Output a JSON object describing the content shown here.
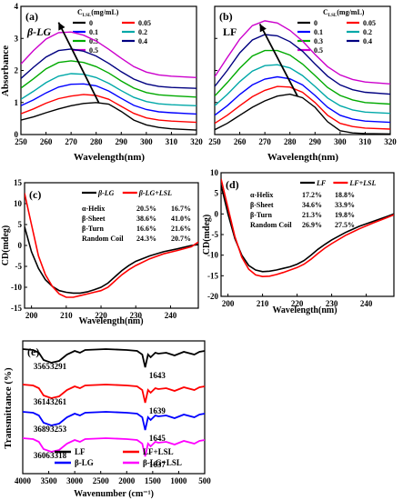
{
  "chart_data": [
    {
      "panel": "(a)",
      "type": "line",
      "tag": "β-LG",
      "xlabel": "Wavelength(nm)",
      "ylabel": "Absorbance",
      "xlim": [
        250,
        320
      ],
      "ylim": [
        0,
        4
      ],
      "xticks": [
        250,
        260,
        270,
        280,
        290,
        300,
        310,
        320
      ],
      "yticks": [
        0,
        1,
        2,
        3,
        4
      ],
      "legend_title": "C_LSL(mg/mL)",
      "legend": [
        {
          "name": "0",
          "color": "#000000"
        },
        {
          "name": "0.05",
          "color": "#ff0000"
        },
        {
          "name": "0.1",
          "color": "#0000ff"
        },
        {
          "name": "0.2",
          "color": "#00a8a8"
        },
        {
          "name": "0.3",
          "color": "#00aa00"
        },
        {
          "name": "0.4",
          "color": "#000080"
        },
        {
          "name": "0.5",
          "color": "#cc00cc"
        }
      ],
      "x": [
        250,
        255,
        260,
        265,
        270,
        275,
        280,
        285,
        290,
        295,
        300,
        305,
        310,
        320
      ],
      "series": [
        {
          "name": "0",
          "color": "#000000",
          "values": [
            0.45,
            0.55,
            0.68,
            0.8,
            0.9,
            0.97,
            1.0,
            0.95,
            0.72,
            0.45,
            0.3,
            0.22,
            0.18,
            0.14
          ]
        },
        {
          "name": "0.05",
          "color": "#ff0000",
          "values": [
            0.65,
            0.8,
            0.98,
            1.12,
            1.2,
            1.25,
            1.22,
            1.1,
            0.88,
            0.66,
            0.52,
            0.45,
            0.42,
            0.38
          ]
        },
        {
          "name": "0.1",
          "color": "#0000ff",
          "values": [
            0.9,
            1.08,
            1.3,
            1.48,
            1.57,
            1.58,
            1.52,
            1.36,
            1.13,
            0.91,
            0.78,
            0.71,
            0.68,
            0.64
          ]
        },
        {
          "name": "0.2",
          "color": "#00a8a8",
          "values": [
            1.1,
            1.35,
            1.62,
            1.82,
            1.9,
            1.88,
            1.78,
            1.6,
            1.37,
            1.16,
            1.03,
            0.96,
            0.93,
            0.9
          ]
        },
        {
          "name": "0.3",
          "color": "#00aa00",
          "values": [
            1.45,
            1.74,
            2.05,
            2.25,
            2.3,
            2.25,
            2.12,
            1.92,
            1.67,
            1.45,
            1.31,
            1.24,
            1.21,
            1.17
          ]
        },
        {
          "name": "0.4",
          "color": "#000080",
          "values": [
            1.75,
            2.1,
            2.42,
            2.62,
            2.67,
            2.6,
            2.45,
            2.22,
            1.96,
            1.73,
            1.58,
            1.5,
            1.47,
            1.44
          ]
        },
        {
          "name": "0.5",
          "color": "#cc00cc",
          "values": [
            2.2,
            2.62,
            2.98,
            3.18,
            3.2,
            3.1,
            2.92,
            2.66,
            2.38,
            2.12,
            1.95,
            1.86,
            1.82,
            1.78
          ]
        }
      ],
      "arrow": {
        "from": [
          281,
          1.0
        ],
        "to": [
          265,
          3.5
        ]
      }
    },
    {
      "panel": "(b)",
      "type": "line",
      "tag": "LF",
      "xlabel": "Wavelength(nm)",
      "ylabel": "",
      "xlim": [
        250,
        320
      ],
      "ylim": [
        0,
        4
      ],
      "xticks": [
        250,
        260,
        270,
        280,
        290,
        300,
        310,
        320
      ],
      "yticks": [
        0,
        1,
        2,
        3,
        4
      ],
      "legend_title": "C_LSL(mg/mL)",
      "legend": [
        {
          "name": "0",
          "color": "#000000"
        },
        {
          "name": "0.05",
          "color": "#ff0000"
        },
        {
          "name": "0.1",
          "color": "#0000ff"
        },
        {
          "name": "0.2",
          "color": "#00a8a8"
        },
        {
          "name": "0.3",
          "color": "#00aa00"
        },
        {
          "name": "0.4",
          "color": "#000080"
        },
        {
          "name": "0.5",
          "color": "#cc00cc"
        }
      ],
      "x": [
        250,
        255,
        260,
        265,
        270,
        275,
        280,
        285,
        290,
        295,
        300,
        305,
        310,
        320
      ],
      "series": [
        {
          "name": "0",
          "color": "#000000",
          "values": [
            0.15,
            0.35,
            0.6,
            0.85,
            1.05,
            1.2,
            1.26,
            1.15,
            0.85,
            0.4,
            0.12,
            0.05,
            0.03,
            0.02
          ]
        },
        {
          "name": "0.05",
          "color": "#ff0000",
          "values": [
            0.35,
            0.6,
            0.9,
            1.18,
            1.38,
            1.5,
            1.48,
            1.32,
            1.0,
            0.6,
            0.35,
            0.25,
            0.2,
            0.17
          ]
        },
        {
          "name": "0.1",
          "color": "#0000ff",
          "values": [
            0.6,
            0.9,
            1.25,
            1.55,
            1.73,
            1.8,
            1.74,
            1.55,
            1.22,
            0.85,
            0.6,
            0.48,
            0.42,
            0.38
          ]
        },
        {
          "name": "0.2",
          "color": "#00a8a8",
          "values": [
            0.9,
            1.25,
            1.65,
            1.98,
            2.15,
            2.18,
            2.08,
            1.84,
            1.5,
            1.14,
            0.9,
            0.77,
            0.7,
            0.66
          ]
        },
        {
          "name": "0.3",
          "color": "#00aa00",
          "values": [
            1.2,
            1.62,
            2.07,
            2.45,
            2.62,
            2.62,
            2.48,
            2.2,
            1.84,
            1.47,
            1.22,
            1.08,
            1.0,
            0.95
          ]
        },
        {
          "name": "0.4",
          "color": "#000080",
          "values": [
            1.5,
            2.0,
            2.55,
            2.95,
            3.12,
            3.08,
            2.9,
            2.6,
            2.2,
            1.82,
            1.55,
            1.4,
            1.32,
            1.26
          ]
        },
        {
          "name": "0.5",
          "color": "#cc00cc",
          "values": [
            1.8,
            2.4,
            2.98,
            3.4,
            3.55,
            3.48,
            3.25,
            2.92,
            2.5,
            2.12,
            1.86,
            1.72,
            1.64,
            1.58
          ]
        }
      ],
      "arrow": {
        "from": [
          283,
          1.2
        ],
        "to": [
          268,
          3.45
        ]
      }
    },
    {
      "panel": "(c)",
      "type": "line",
      "xlabel": "Wavelength(nm)",
      "ylabel": "CD(mdeg)",
      "xlim": [
        198,
        248
      ],
      "ylim": [
        -15,
        15
      ],
      "xticks": [
        200,
        210,
        220,
        230,
        240
      ],
      "yticks": [
        -15,
        -10,
        -5,
        0,
        5,
        10,
        15
      ],
      "legend": [
        {
          "name": "β-LG",
          "color": "#000000"
        },
        {
          "name": "β-LG+LSL",
          "color": "#ff0000"
        }
      ],
      "x": [
        198,
        200,
        202,
        204,
        206,
        208,
        210,
        212,
        214,
        216,
        218,
        220,
        222,
        224,
        226,
        228,
        230,
        234,
        238,
        242,
        246,
        248
      ],
      "series": [
        {
          "name": "β-LG",
          "color": "#000000",
          "values": [
            4.5,
            -1.5,
            -5.5,
            -8.2,
            -9.8,
            -10.8,
            -11.2,
            -11.4,
            -11.4,
            -11.1,
            -10.6,
            -10.0,
            -9.0,
            -7.5,
            -6.0,
            -4.8,
            -3.8,
            -2.5,
            -1.5,
            -0.8,
            0.0,
            0.2
          ]
        },
        {
          "name": "β-LG+LSL",
          "color": "#ff0000",
          "values": [
            12.5,
            5.0,
            -2.5,
            -7.0,
            -9.8,
            -11.6,
            -12.4,
            -12.4,
            -12.0,
            -11.6,
            -11.2,
            -10.8,
            -10.0,
            -8.5,
            -7.0,
            -5.8,
            -4.8,
            -3.2,
            -2.0,
            -1.2,
            -0.3,
            0.8
          ]
        }
      ],
      "table": [
        {
          "label": "α-Helix",
          "a": "20.5%",
          "b": "16.7%"
        },
        {
          "label": "β-Sheet",
          "a": "38.6%",
          "b": "41.0%"
        },
        {
          "label": "β-Turn",
          "a": "16.6%",
          "b": "21.6%"
        },
        {
          "label": "Random Coil",
          "a": "24.3%",
          "b": "20.7%"
        }
      ]
    },
    {
      "panel": "(d)",
      "type": "line",
      "xlabel": "Wavelength(nm)",
      "ylabel": "CD(mdeg)",
      "xlim": [
        198,
        248
      ],
      "ylim": [
        -20,
        10
      ],
      "xticks": [
        200,
        210,
        220,
        230,
        240
      ],
      "yticks": [
        -20,
        -15,
        -10,
        -5,
        0,
        5,
        10
      ],
      "legend": [
        {
          "name": "LF",
          "color": "#000000"
        },
        {
          "name": "LF+LSL",
          "color": "#ff0000"
        }
      ],
      "x": [
        198,
        200,
        202,
        204,
        206,
        208,
        210,
        212,
        214,
        216,
        218,
        220,
        222,
        224,
        226,
        228,
        230,
        234,
        238,
        242,
        246,
        248
      ],
      "series": [
        {
          "name": "LF",
          "color": "#000000",
          "values": [
            7.0,
            0.0,
            -6.0,
            -10.0,
            -12.5,
            -13.6,
            -14.0,
            -13.9,
            -13.6,
            -13.2,
            -12.8,
            -12.2,
            -11.3,
            -10.0,
            -8.6,
            -7.4,
            -6.3,
            -4.5,
            -3.0,
            -1.8,
            -0.6,
            0.0
          ]
        },
        {
          "name": "LF+LSL",
          "color": "#ff0000",
          "values": [
            8.5,
            1.5,
            -5.5,
            -10.5,
            -13.4,
            -14.8,
            -15.2,
            -15.1,
            -14.7,
            -14.2,
            -13.6,
            -13.0,
            -12.2,
            -11.0,
            -9.6,
            -8.3,
            -7.2,
            -5.2,
            -3.6,
            -2.2,
            -0.9,
            -0.2
          ]
        }
      ],
      "table": [
        {
          "label": "α-Helix",
          "a": "17.2%",
          "b": "18.8%"
        },
        {
          "label": "β-Sheet",
          "a": "34.6%",
          "b": "33.9%"
        },
        {
          "label": "β-Turn",
          "a": "21.3%",
          "b": "19.8%"
        },
        {
          "label": "Random Coil",
          "a": "26.9%",
          "b": "27.5%"
        }
      ]
    },
    {
      "panel": "(e)",
      "type": "line",
      "xlabel": "Wavenumber (cm⁻¹)",
      "ylabel": "Transmittance (%)",
      "xlim": [
        4000,
        500
      ],
      "xticks": [
        4000,
        3500,
        3000,
        2500,
        2000,
        1500,
        1000,
        500
      ],
      "legend": [
        {
          "name": "LF",
          "color": "#000000"
        },
        {
          "name": "LF+LSL",
          "color": "#ff0000"
        },
        {
          "name": "β-LG",
          "color": "#0000ff"
        },
        {
          "name": "β-LG+LSL",
          "color": "#ff00ff"
        }
      ],
      "series": [
        {
          "name": "LF",
          "color": "#000000",
          "labels": [
            "3565",
            "3291",
            "1643"
          ]
        },
        {
          "name": "LF+LSL",
          "color": "#ff0000",
          "labels": [
            "3614",
            "3261",
            "1639"
          ]
        },
        {
          "name": "β-LG",
          "color": "#0000ff",
          "labels": [
            "3689",
            "3253",
            "1645"
          ]
        },
        {
          "name": "β-LG+LSL",
          "color": "#ff00ff",
          "labels": [
            "3606",
            "3318",
            "1637"
          ]
        }
      ]
    }
  ]
}
